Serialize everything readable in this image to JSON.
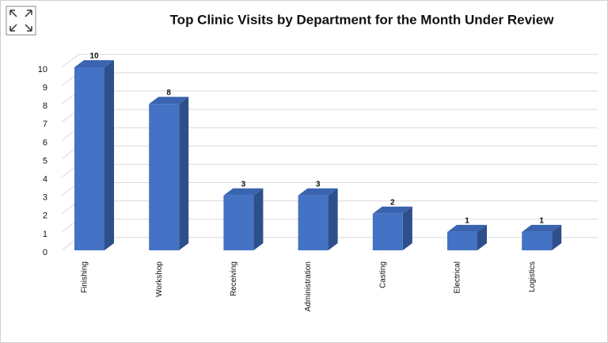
{
  "chart_data": {
    "type": "bar",
    "title": "Top Clinic Visits by Department for the Month Under Review",
    "categories": [
      "Finishing",
      "Workshop",
      "Receiving",
      "Administration",
      "Casting",
      "Electrical",
      "Logistics"
    ],
    "values": [
      10,
      8,
      3,
      3,
      2,
      1,
      1
    ],
    "color": "#4472c4",
    "ylim": [
      0,
      10
    ],
    "yticks": [
      0,
      1,
      2,
      3,
      4,
      5,
      6,
      7,
      8,
      9,
      10
    ],
    "grid": true
  }
}
